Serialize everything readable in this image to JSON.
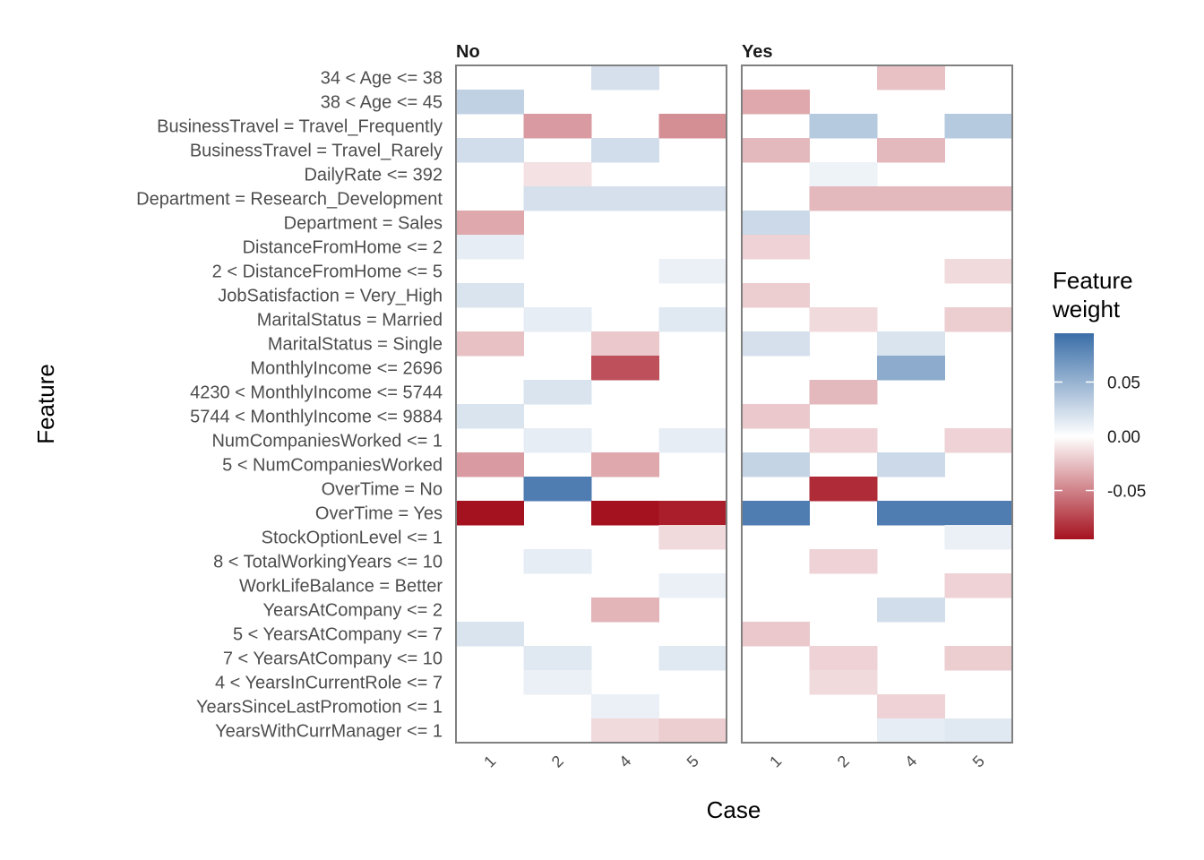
{
  "chart_data": {
    "type": "heatmap",
    "xlabel": "Case",
    "ylabel": "Feature",
    "facets": [
      "No",
      "Yes"
    ],
    "cases": [
      "1",
      "2",
      "4",
      "5"
    ],
    "features": [
      "34 < Age <= 38",
      "38 < Age <= 45",
      "BusinessTravel = Travel_Frequently",
      "BusinessTravel = Travel_Rarely",
      "DailyRate <= 392",
      "Department = Research_Development",
      "Department = Sales",
      "DistanceFromHome <= 2",
      "2 < DistanceFromHome <= 5",
      "JobSatisfaction = Very_High",
      "MaritalStatus = Married",
      "MaritalStatus = Single",
      "MonthlyIncome <= 2696",
      "4230 < MonthlyIncome <= 5744",
      "5744 < MonthlyIncome <= 9884",
      "NumCompaniesWorked <= 1",
      "5 < NumCompaniesWorked",
      "OverTime = No",
      "OverTime = Yes",
      "StockOptionLevel <= 1",
      "8 < TotalWorkingYears <= 10",
      "WorkLifeBalance = Better",
      "YearsAtCompany <= 2",
      "5 < YearsAtCompany <= 7",
      "7 < YearsAtCompany <= 10",
      "4 < YearsInCurrentRole <= 7",
      "YearsSinceLastPromotion <= 1",
      "YearsWithCurrManager <= 1"
    ],
    "weights": {
      "No": [
        [
          null,
          null,
          0.02,
          null
        ],
        [
          0.03,
          null,
          null,
          null
        ],
        [
          null,
          -0.04,
          null,
          -0.045
        ],
        [
          0.022,
          null,
          0.022,
          null
        ],
        [
          null,
          -0.012,
          null,
          null
        ],
        [
          null,
          0.02,
          0.02,
          0.02
        ],
        [
          -0.035,
          null,
          null,
          null
        ],
        [
          0.012,
          null,
          null,
          null
        ],
        [
          null,
          null,
          null,
          0.01
        ],
        [
          0.018,
          null,
          null,
          null
        ],
        [
          null,
          0.012,
          null,
          0.015
        ],
        [
          -0.025,
          null,
          -0.022,
          null
        ],
        [
          null,
          null,
          -0.07,
          null
        ],
        [
          null,
          0.018,
          null,
          null
        ],
        [
          0.018,
          null,
          null,
          null
        ],
        [
          null,
          0.012,
          null,
          0.012
        ],
        [
          -0.04,
          null,
          -0.035,
          null
        ],
        [
          null,
          0.085,
          null,
          null
        ],
        [
          -0.095,
          null,
          -0.095,
          -0.09
        ],
        [
          null,
          null,
          null,
          -0.015
        ],
        [
          null,
          0.012,
          null,
          null
        ],
        [
          null,
          null,
          null,
          0.01
        ],
        [
          null,
          null,
          -0.03,
          null
        ],
        [
          0.018,
          null,
          null,
          null
        ],
        [
          null,
          0.015,
          null,
          0.015
        ],
        [
          null,
          0.01,
          null,
          null
        ],
        [
          null,
          null,
          0.01,
          null
        ],
        [
          null,
          null,
          -0.015,
          -0.02
        ]
      ],
      "Yes": [
        [
          null,
          null,
          -0.025,
          null
        ],
        [
          -0.035,
          null,
          null,
          null
        ],
        [
          null,
          0.035,
          null,
          0.035
        ],
        [
          -0.028,
          null,
          -0.028,
          null
        ],
        [
          null,
          0.008,
          null,
          null
        ],
        [
          null,
          -0.028,
          -0.028,
          -0.028
        ],
        [
          0.025,
          null,
          null,
          null
        ],
        [
          -0.018,
          null,
          null,
          null
        ],
        [
          null,
          null,
          null,
          -0.015
        ],
        [
          -0.02,
          null,
          null,
          null
        ],
        [
          null,
          -0.015,
          null,
          -0.02
        ],
        [
          0.02,
          null,
          0.018,
          null
        ],
        [
          null,
          null,
          0.055,
          null
        ],
        [
          null,
          -0.028,
          null,
          null
        ],
        [
          -0.022,
          null,
          null,
          null
        ],
        [
          null,
          -0.018,
          null,
          -0.018
        ],
        [
          0.028,
          null,
          0.025,
          null
        ],
        [
          null,
          -0.085,
          null,
          null
        ],
        [
          0.085,
          null,
          0.085,
          0.085
        ],
        [
          null,
          null,
          null,
          0.01
        ],
        [
          null,
          -0.018,
          null,
          null
        ],
        [
          null,
          null,
          null,
          -0.018
        ],
        [
          null,
          null,
          0.022,
          null
        ],
        [
          -0.022,
          null,
          null,
          null
        ],
        [
          null,
          -0.018,
          null,
          -0.02
        ],
        [
          null,
          -0.015,
          null,
          null
        ],
        [
          null,
          null,
          -0.018,
          null
        ],
        [
          null,
          null,
          0.012,
          0.015
        ]
      ]
    },
    "legend": {
      "title_line1": "Feature",
      "title_line2": "weight",
      "ticks": [
        {
          "value": 0.05,
          "label": "0.05"
        },
        {
          "value": 0.0,
          "label": "0.00"
        },
        {
          "value": -0.05,
          "label": "-0.05"
        }
      ],
      "range": [
        -0.095,
        0.095
      ],
      "high_color": "#3a6ea8",
      "mid_color": "#ffffff",
      "low_color": "#a5121f"
    },
    "grid": false
  }
}
